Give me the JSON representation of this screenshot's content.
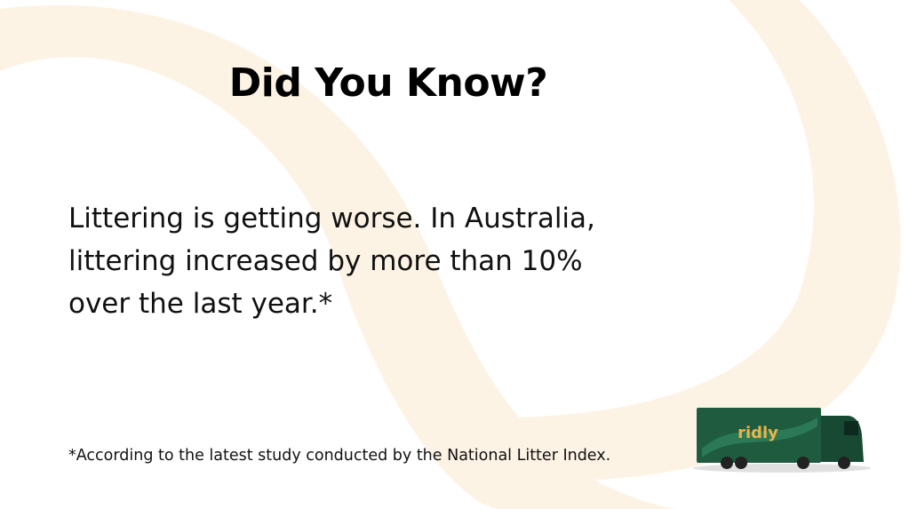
{
  "header": {
    "title": "Did You Know?"
  },
  "body": {
    "lines": [
      "Littering is getting worse. In Australia,",
      "littering increased by more than 10%",
      "over the last year.*"
    ]
  },
  "footnote": "*According to the latest study conducted by the National Litter Index.",
  "truck": {
    "logo": "ridly"
  }
}
